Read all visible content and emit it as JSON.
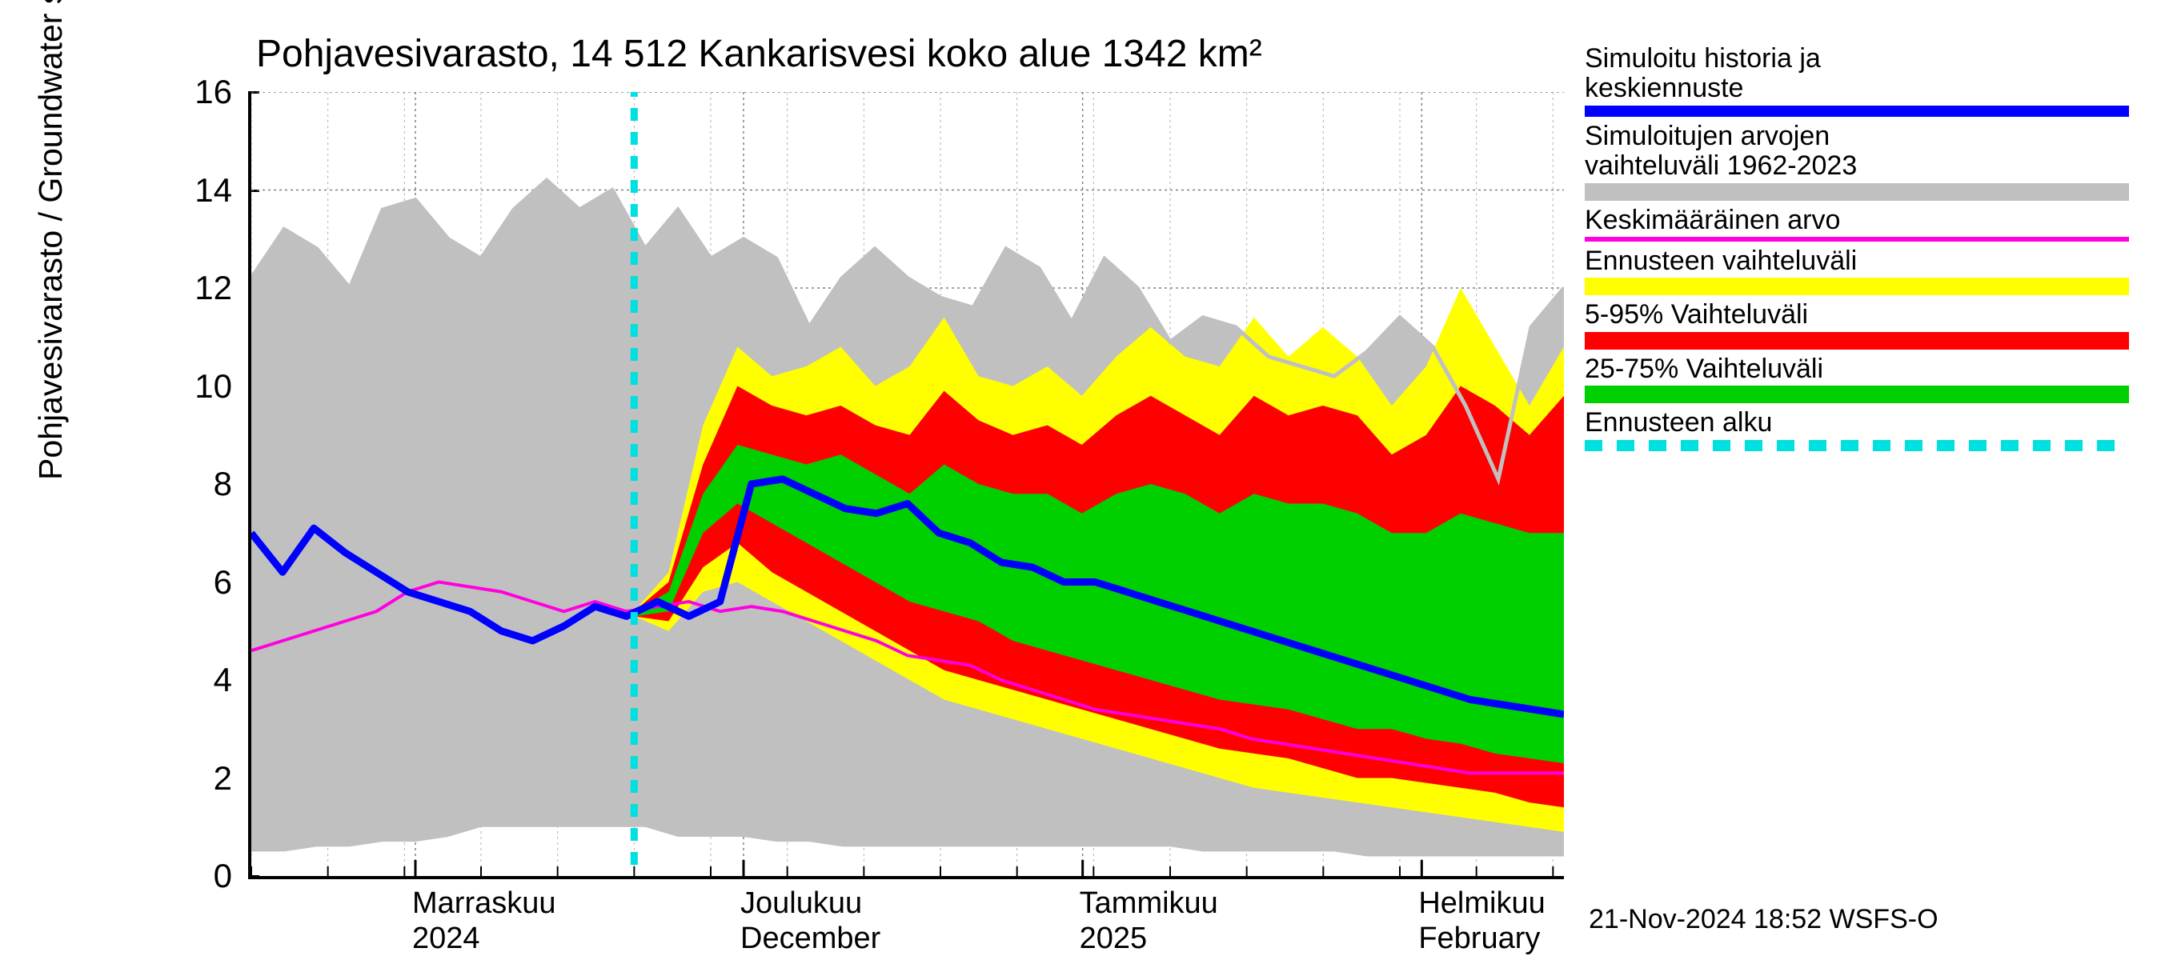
{
  "chart": {
    "title": "Pohjavesivarasto, 14 512 Kankarisvesi koko alue 1342 km²",
    "y_axis_label": "Pohjavesivarasto / Groundwater storage   mm",
    "timestamp": "21-Nov-2024 18:52 WSFS-O",
    "type": "line-band-forecast",
    "background_color": "#ffffff",
    "grid_color": "#808080",
    "grid_dash": "3,4",
    "axis_color": "#000000",
    "y_axis": {
      "min": 0,
      "max": 16,
      "ticks": [
        0,
        2,
        4,
        6,
        8,
        10,
        12,
        14,
        16
      ],
      "label_fontsize": 42
    },
    "x_axis": {
      "n_days": 120,
      "month_starts_day": [
        15,
        45,
        76,
        107
      ],
      "month_labels_fi": [
        "Marraskuu",
        "Joulukuu",
        "Tammikuu",
        "Helmikuu"
      ],
      "month_labels_en": [
        "",
        "December",
        "",
        "February"
      ],
      "year_labels": [
        "2024",
        "",
        "2025",
        ""
      ],
      "weekly_minor_ticks": true
    },
    "forecast_start_day": 35,
    "colors": {
      "historical_range": "#c0c0c0",
      "forecast_full": "#ffff00",
      "forecast_5_95": "#ff0000",
      "forecast_25_75": "#00d000",
      "main_line": "#0000ff",
      "mean_line": "#ff00e0",
      "forecast_start_line": "#00e0e0"
    },
    "line_widths": {
      "main": 9,
      "mean": 4,
      "forecast_start": 9
    },
    "series": {
      "gray_upper": [
        12.2,
        13.2,
        12.8,
        12.0,
        13.6,
        13.8,
        13.0,
        12.6,
        13.6,
        14.2,
        13.6,
        14.0,
        12.8,
        13.6,
        12.6,
        13.0,
        12.6,
        11.2,
        12.2,
        12.8,
        12.2,
        11.8,
        11.6,
        12.8,
        12.4,
        11.3,
        12.6,
        12.0,
        10.9,
        11.4,
        11.2,
        10.6,
        10.4,
        10.2,
        10.7,
        11.4,
        10.8,
        9.6,
        8.1,
        11.2,
        12.0
      ],
      "gray_lower": [
        0.5,
        0.5,
        0.6,
        0.6,
        0.7,
        0.7,
        0.8,
        1.0,
        1.0,
        1.0,
        1.0,
        1.0,
        1.0,
        0.8,
        0.8,
        0.8,
        0.7,
        0.7,
        0.6,
        0.6,
        0.6,
        0.6,
        0.6,
        0.6,
        0.6,
        0.6,
        0.6,
        0.6,
        0.6,
        0.5,
        0.5,
        0.5,
        0.5,
        0.5,
        0.4,
        0.4,
        0.4,
        0.4,
        0.4,
        0.4,
        0.4
      ],
      "yellow_upper": [
        5.4,
        6.2,
        9.2,
        10.8,
        10.2,
        10.4,
        10.8,
        10.0,
        10.4,
        11.4,
        10.2,
        10.0,
        10.4,
        9.8,
        10.6,
        11.2,
        10.6,
        10.4,
        11.4,
        10.6,
        11.2,
        10.6,
        9.6,
        10.4,
        12.0,
        10.8,
        9.6,
        10.8
      ],
      "yellow_lower": [
        5.3,
        5.0,
        5.8,
        6.0,
        5.6,
        5.2,
        4.8,
        4.4,
        4.0,
        3.6,
        3.4,
        3.2,
        3.0,
        2.8,
        2.6,
        2.4,
        2.2,
        2.0,
        1.8,
        1.7,
        1.6,
        1.5,
        1.4,
        1.3,
        1.2,
        1.1,
        1.0,
        0.9
      ],
      "red_upper": [
        5.4,
        6.0,
        8.4,
        10.0,
        9.6,
        9.4,
        9.6,
        9.2,
        9.0,
        9.9,
        9.3,
        9.0,
        9.2,
        8.8,
        9.4,
        9.8,
        9.4,
        9.0,
        9.8,
        9.4,
        9.6,
        9.4,
        8.6,
        9.0,
        10.0,
        9.6,
        9.0,
        9.8
      ],
      "red_lower": [
        5.3,
        5.2,
        6.3,
        6.8,
        6.2,
        5.8,
        5.4,
        5.0,
        4.6,
        4.2,
        4.0,
        3.8,
        3.6,
        3.4,
        3.2,
        3.0,
        2.8,
        2.6,
        2.5,
        2.4,
        2.2,
        2.0,
        2.0,
        1.9,
        1.8,
        1.7,
        1.5,
        1.4
      ],
      "green_upper": [
        5.4,
        5.8,
        7.8,
        8.8,
        8.6,
        8.4,
        8.6,
        8.2,
        7.8,
        8.4,
        8.0,
        7.8,
        7.8,
        7.4,
        7.8,
        8.0,
        7.8,
        7.4,
        7.8,
        7.6,
        7.6,
        7.4,
        7.0,
        7.0,
        7.4,
        7.2,
        7.0,
        7.0
      ],
      "green_lower": [
        5.3,
        5.4,
        7.0,
        7.6,
        7.2,
        6.8,
        6.4,
        6.0,
        5.6,
        5.4,
        5.2,
        4.8,
        4.6,
        4.4,
        4.2,
        4.0,
        3.8,
        3.6,
        3.5,
        3.4,
        3.2,
        3.0,
        3.0,
        2.8,
        2.7,
        2.5,
        2.4,
        2.3
      ],
      "blue": [
        7.0,
        6.2,
        7.1,
        6.6,
        6.2,
        5.8,
        5.6,
        5.4,
        5.0,
        4.8,
        5.1,
        5.5,
        5.3,
        5.6,
        5.3,
        5.6,
        8.0,
        8.1,
        7.8,
        7.5,
        7.4,
        7.6,
        7.0,
        6.8,
        6.4,
        6.3,
        6.0,
        6.0,
        5.8,
        5.6,
        5.4,
        5.2,
        5.0,
        4.8,
        4.6,
        4.4,
        4.2,
        4.0,
        3.8,
        3.6,
        3.5,
        3.4,
        3.3
      ],
      "magenta": [
        4.6,
        4.8,
        5.0,
        5.2,
        5.4,
        5.8,
        6.0,
        5.9,
        5.8,
        5.6,
        5.4,
        5.6,
        5.4,
        5.5,
        5.6,
        5.4,
        5.5,
        5.4,
        5.2,
        5.0,
        4.8,
        4.5,
        4.4,
        4.3,
        4.0,
        3.8,
        3.6,
        3.4,
        3.3,
        3.2,
        3.1,
        3.0,
        2.8,
        2.7,
        2.6,
        2.5,
        2.4,
        2.3,
        2.2,
        2.1,
        2.1,
        2.1,
        2.1
      ]
    },
    "legend": [
      {
        "labels": [
          "Simuloitu historia ja",
          "keskiennuste"
        ],
        "kind": "line",
        "color": "#0000ff",
        "thick": true
      },
      {
        "labels": [
          "Simuloitujen arvojen",
          "vaihteluväli 1962-2023"
        ],
        "kind": "band",
        "color": "#c0c0c0"
      },
      {
        "labels": [
          "Keskimääräinen arvo"
        ],
        "kind": "line",
        "color": "#ff00e0",
        "thick": false
      },
      {
        "labels": [
          "Ennusteen vaihteluväli"
        ],
        "kind": "band",
        "color": "#ffff00"
      },
      {
        "labels": [
          "5-95% Vaihteluväli"
        ],
        "kind": "band",
        "color": "#ff0000"
      },
      {
        "labels": [
          "25-75% Vaihteluväli"
        ],
        "kind": "band",
        "color": "#00d000"
      },
      {
        "labels": [
          "Ennusteen alku"
        ],
        "kind": "dash",
        "color": "#00e0e0"
      }
    ]
  }
}
